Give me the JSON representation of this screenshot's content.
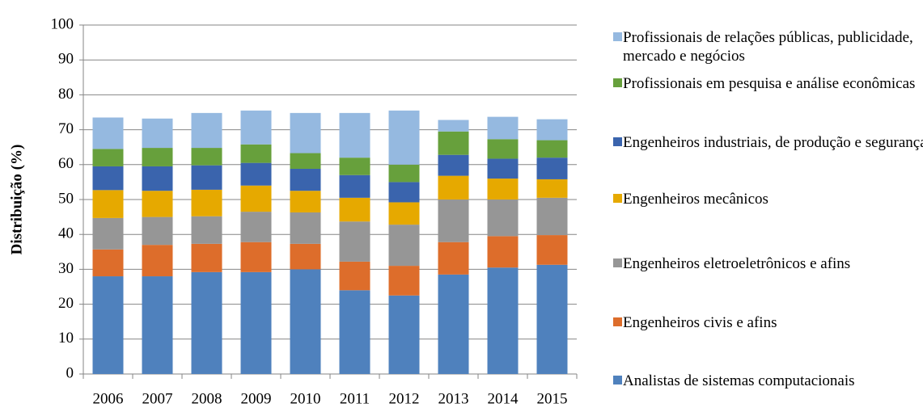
{
  "chart_data": {
    "type": "stacked_bar",
    "y_label": "Distribuição (%)",
    "categories": [
      "2006",
      "2007",
      "2008",
      "2009",
      "2010",
      "2011",
      "2012",
      "2013",
      "2014",
      "2015"
    ],
    "series": [
      {
        "name": "Analistas de sistemas computacionais",
        "color": "#4f81bd",
        "values": [
          28,
          28,
          29.2,
          29.2,
          30,
          24,
          22.5,
          28.5,
          30.5,
          31.3
        ]
      },
      {
        "name": "Engenheiros civis e afins",
        "color": "#dd6d2b",
        "values": [
          7.7,
          9,
          8.1,
          8.6,
          7.3,
          8.2,
          8.5,
          9.3,
          9,
          8.5
        ]
      },
      {
        "name": "Engenheiros eletroeletrônicos e afins",
        "color": "#969696",
        "values": [
          9,
          8,
          7.9,
          8.7,
          9,
          11.5,
          11.8,
          12.2,
          10.5,
          10.7
        ]
      },
      {
        "name": "Engenheiros mecânicos",
        "color": "#e6a900",
        "values": [
          8,
          7.5,
          7.6,
          7.5,
          6.2,
          6.8,
          6.4,
          6.8,
          6,
          5.3
        ]
      },
      {
        "name": "Engenheiros industriais, de produção e segurança",
        "color": "#3a64ad",
        "values": [
          6.8,
          7,
          7,
          6.5,
          6.3,
          6.5,
          5.8,
          6,
          5.7,
          6.2
        ]
      },
      {
        "name": "Profissionais em pesquisa e análise econômicas",
        "color": "#67a03c",
        "values": [
          5,
          5.3,
          5,
          5.3,
          4.5,
          5,
          5,
          6.7,
          5.6,
          5
        ]
      },
      {
        "name": "Profissionais de relações públicas, publicidade, mercado e negócios",
        "color": "#95b9e0",
        "values": [
          9,
          8.4,
          10,
          9.7,
          11.5,
          12.8,
          15.5,
          3.3,
          6.4,
          6
        ]
      }
    ],
    "ylim": [
      0,
      100
    ],
    "yticks": [
      0,
      10,
      20,
      30,
      40,
      50,
      60,
      70,
      80,
      90,
      100
    ],
    "grid": true
  }
}
